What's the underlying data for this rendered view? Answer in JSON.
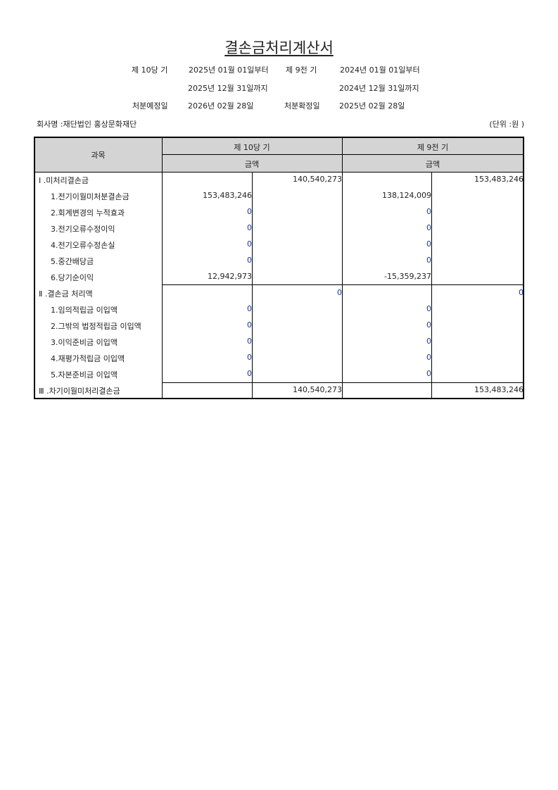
{
  "title": "결손금처리계산서",
  "header": {
    "current_period": "제 10당 기",
    "current_from": "2025년 01월 01일부터",
    "current_to": "2025년 12월 31일까지",
    "prior_period": "제  9전 기",
    "prior_from": "2024년 01월 01일부터",
    "prior_to": "2024년 12월 31일까지",
    "planned_date_label": "처분예정일",
    "planned_date": "2026년 02월 28일",
    "confirmed_date_label": "처분확정일",
    "confirmed_date": "2025년 02월 28일",
    "company": "회사명  :재단법인 홍상문화재단",
    "unit": "(단위  :원 )"
  },
  "table": {
    "col_subject": "과목",
    "col_current": "제 10당 기",
    "col_prior": "제  9전 기",
    "col_amount_current": "금액",
    "col_amount_prior": "금액",
    "rows": [
      {
        "label": "Ⅰ .미처리결손금",
        "cur_total": "140,540,273",
        "prev_total": "153,483,246"
      },
      {
        "label": "1.전기이월미처분결손금",
        "cur_detail": "153,483,246",
        "prev_detail": "138,124,009"
      },
      {
        "label": "2.회계변경의 누적효과",
        "cur_detail": "0",
        "prev_detail": "0"
      },
      {
        "label": "3.전기오류수정이익",
        "cur_detail": "0",
        "prev_detail": "0"
      },
      {
        "label": "4.전기오류수정손실",
        "cur_detail": "0",
        "prev_detail": "0"
      },
      {
        "label": "5.중간배당금",
        "cur_detail": "0",
        "prev_detail": "0"
      },
      {
        "label": "6.당기순이익",
        "cur_detail": "12,942,973",
        "prev_detail": "-15,359,237"
      },
      {
        "label": "Ⅱ .결손금 처리액",
        "cur_total": "0",
        "prev_total": "0"
      },
      {
        "label": "1.임의적립금 이입액",
        "cur_detail": "0",
        "prev_detail": "0"
      },
      {
        "label": "2.그밖의 법정적립금 이입액",
        "cur_detail": "0",
        "prev_detail": "0"
      },
      {
        "label": "3.이익준비금 이입액",
        "cur_detail": "0",
        "prev_detail": "0"
      },
      {
        "label": "4.재평가적립금 이입액",
        "cur_detail": "0",
        "prev_detail": "0"
      },
      {
        "label": "5.자본준비금 이입액",
        "cur_detail": "0",
        "prev_detail": "0"
      },
      {
        "label": "Ⅲ .차기이월미처리결손금",
        "cur_total": "140,540,273",
        "prev_total": "153,483,246"
      }
    ]
  }
}
